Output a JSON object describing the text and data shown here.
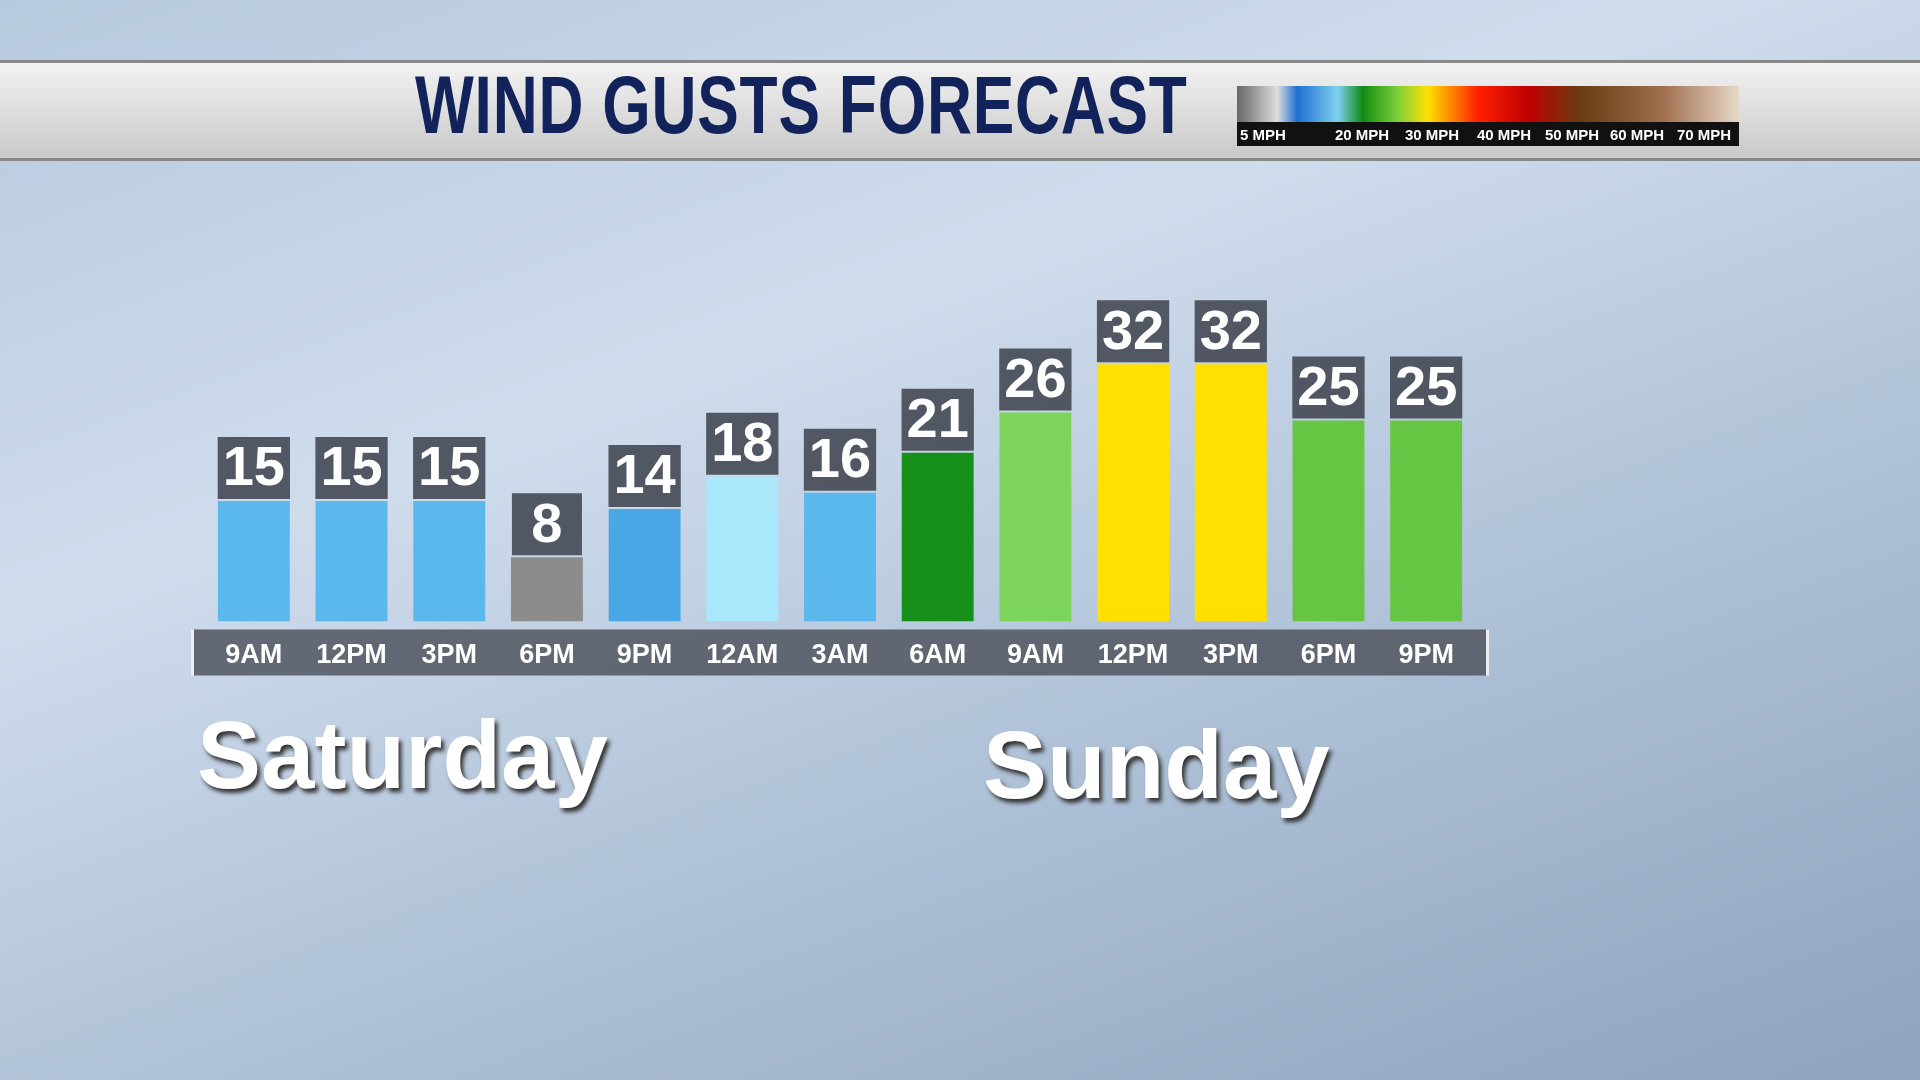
{
  "chart_data": {
    "type": "bar",
    "title": "WIND GUSTS FORECAST",
    "categories": [
      "9AM",
      "12PM",
      "3PM",
      "6PM",
      "9PM",
      "12AM",
      "3AM",
      "6AM",
      "9AM",
      "12PM",
      "3PM",
      "6PM",
      "9PM"
    ],
    "values": [
      15,
      15,
      15,
      8,
      14,
      18,
      16,
      21,
      26,
      32,
      32,
      25,
      25
    ],
    "colors": [
      "#5bb8ec",
      "#5bb8ec",
      "#5bb8ec",
      "#8c8c8c",
      "#4aa7e6",
      "#a8e8fa",
      "#5bb8ec",
      "#17901a",
      "#7cd45a",
      "#ffe000",
      "#ffe000",
      "#66c644",
      "#66c644"
    ],
    "data_labels": true,
    "grid": false,
    "legend": false,
    "annotations": [
      "5 MPH",
      "20 MPH",
      "30 MPH",
      "40 MPH",
      "50 MPH",
      "60 MPH",
      "70 MPH",
      "Saturday",
      "Sunday"
    ]
  }
}
